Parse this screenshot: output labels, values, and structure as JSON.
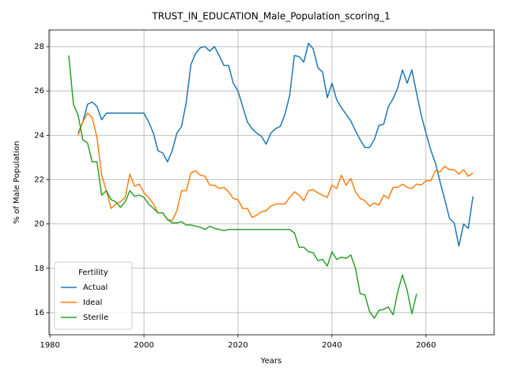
{
  "chart_data": {
    "type": "line",
    "title": "TRUST_IN_EDUCATION_Male_Population_scoring_1",
    "xlabel": "Years",
    "ylabel": "% of Male Population",
    "legend_title": "Fertility",
    "legend": "lower left",
    "grid": true,
    "xlim": [
      1979.8,
      2074.5
    ],
    "ylim": [
      15.0,
      28.75
    ],
    "xticks": [
      1980,
      2000,
      2020,
      2040,
      2060
    ],
    "yticks": [
      16,
      18,
      20,
      22,
      24,
      26,
      28
    ],
    "x": [
      1984,
      1985,
      1986,
      1987,
      1988,
      1989,
      1990,
      1991,
      1992,
      1993,
      1994,
      1995,
      1996,
      1997,
      1998,
      1999,
      2000,
      2001,
      2002,
      2003,
      2004,
      2005,
      2006,
      2007,
      2008,
      2009,
      2010,
      2011,
      2012,
      2013,
      2014,
      2015,
      2016,
      2017,
      2018,
      2019,
      2020,
      2021,
      2022,
      2023,
      2024,
      2025,
      2026,
      2027,
      2028,
      2029,
      2030,
      2031,
      2032,
      2033,
      2034,
      2035,
      2036,
      2037,
      2038,
      2039,
      2040,
      2041,
      2042,
      2043,
      2044,
      2045,
      2046,
      2047,
      2048,
      2049,
      2050,
      2051,
      2052,
      2053,
      2054,
      2055,
      2056,
      2057,
      2058,
      2059,
      2060,
      2061,
      2062,
      2063,
      2064,
      2065,
      2066,
      2067,
      2068,
      2069,
      2070
    ],
    "series": [
      {
        "name": "Actual",
        "color": "#1f77b4",
        "values": [
          null,
          null,
          24.1,
          24.6,
          25.4,
          25.5,
          25.3,
          24.7,
          25,
          25,
          25,
          25,
          25,
          25,
          25,
          25,
          25,
          24.6,
          24.1,
          23.3,
          23.2,
          22.8,
          23.3,
          24.1,
          24.4,
          25.5,
          27.2,
          27.7,
          27.95,
          28.0,
          27.8,
          28.0,
          27.6,
          27.15,
          27.15,
          26.35,
          26.0,
          25.3,
          24.6,
          24.3,
          24.1,
          23.95,
          23.6,
          24.1,
          24.3,
          24.4,
          24.95,
          25.8,
          27.6,
          27.55,
          27.3,
          28.15,
          27.9,
          27.05,
          26.85,
          25.7,
          26.35,
          25.6,
          25.25,
          24.95,
          24.65,
          24.2,
          23.8,
          23.45,
          23.45,
          23.8,
          24.45,
          24.5,
          25.3,
          25.65,
          26.15,
          26.95,
          26.35,
          26.95,
          25.9,
          24.9,
          24.1,
          23.35,
          22.75,
          21.9,
          21.1,
          20.25,
          20.05,
          19.0,
          20.0,
          19.8,
          21.25
        ]
      },
      {
        "name": "Ideal",
        "color": "#ff7f0e",
        "values": [
          null,
          null,
          24.0,
          24.6,
          25.0,
          24.8,
          23.9,
          22.2,
          21.5,
          20.7,
          20.9,
          21.0,
          21.2,
          22.25,
          21.7,
          21.8,
          21.4,
          21.2,
          20.9,
          20.5,
          20.5,
          20.2,
          20.15,
          20.6,
          21.5,
          21.5,
          22.3,
          22.4,
          22.2,
          22.15,
          21.75,
          21.75,
          21.6,
          21.65,
          21.45,
          21.15,
          21.1,
          20.7,
          20.7,
          20.3,
          20.4,
          20.55,
          20.6,
          20.8,
          20.9,
          20.9,
          20.9,
          21.2,
          21.45,
          21.3,
          21.05,
          21.5,
          21.55,
          21.4,
          21.3,
          21.2,
          21.75,
          21.6,
          22.2,
          21.75,
          22.05,
          21.45,
          21.15,
          21.05,
          20.8,
          20.95,
          20.85,
          21.3,
          21.15,
          21.65,
          21.65,
          21.8,
          21.65,
          21.6,
          21.8,
          21.75,
          21.95,
          21.95,
          22.4,
          22.35,
          22.6,
          22.45,
          22.45,
          22.25,
          22.45,
          22.15,
          22.3
        ]
      },
      {
        "name": "Sterile",
        "color": "#2ca02c",
        "values": [
          27.6,
          25.4,
          24.9,
          23.8,
          23.65,
          22.8,
          22.8,
          21.3,
          21.5,
          21.1,
          21.0,
          20.75,
          21.0,
          21.5,
          21.25,
          21.3,
          21.2,
          20.9,
          20.7,
          20.5,
          20.5,
          20.2,
          20.05,
          20.05,
          20.1,
          19.95,
          19.95,
          19.9,
          19.85,
          19.75,
          19.9,
          19.8,
          19.75,
          19.7,
          19.75,
          19.75,
          19.75,
          19.75,
          19.75,
          19.75,
          19.75,
          19.75,
          19.75,
          19.75,
          19.75,
          19.75,
          19.75,
          19.75,
          19.6,
          18.95,
          18.95,
          18.75,
          18.7,
          18.35,
          18.4,
          18.1,
          18.75,
          18.4,
          18.5,
          18.45,
          18.6,
          18.0,
          16.85,
          16.8,
          16.05,
          15.75,
          16.1,
          16.15,
          16.25,
          15.9,
          16.95,
          17.7,
          17.0,
          15.95,
          16.85,
          null,
          null,
          null,
          null,
          null,
          null,
          null,
          null,
          null,
          null,
          null,
          null
        ]
      }
    ]
  }
}
